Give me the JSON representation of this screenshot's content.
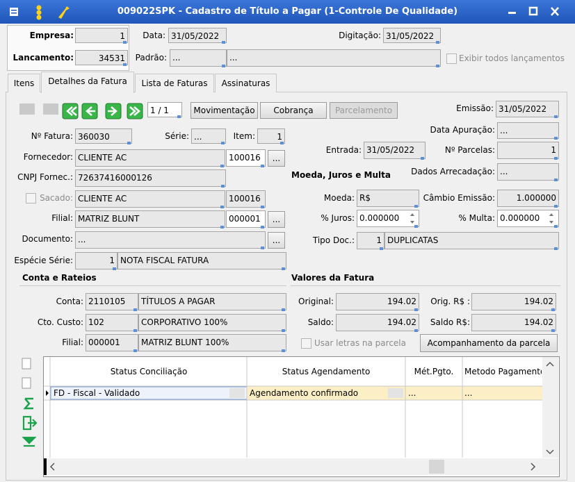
{
  "window": {
    "title": "009022SPK - Cadastro de Título a Pagar (1-Controle De Qualidade)"
  },
  "header": {
    "empresa_label": "Empresa:",
    "empresa": "1",
    "data_label": "Data:",
    "data": "31/05/2022",
    "digitacao_label": "Digitação:",
    "digitacao": "31/05/2022",
    "lancamento_label": "Lancamento:",
    "lancamento": "34531",
    "padrao_label": "Padrão:",
    "padrao_code": "...",
    "padrao_desc": "...",
    "exibir": "Exibir todos lançamentos"
  },
  "tabs": [
    "Itens",
    "Detalhes da Fatura",
    "Lista de Faturas",
    "Assinaturas"
  ],
  "toolbar": {
    "counter": "1 / 1",
    "movimentacao": "Movimentação",
    "cobranca": "Cobrança",
    "parcelamento": "Parcelamento",
    "browse": "..."
  },
  "fatura": {
    "numero_label": "Nº Fatura:",
    "numero": "360030",
    "serie_label": "Série:",
    "serie": "...",
    "item_label": "Item:",
    "item": "1",
    "fornecedor_label": "Fornecedor:",
    "fornecedor": "CLIENTE AC",
    "fornecedor_code": "100016",
    "cnpj_label": "CNPJ Fornec.:",
    "cnpj": "72637416000126",
    "sacado_label": "Sacado:",
    "sacado": "CLIENTE AC",
    "sacado_code": "100016",
    "filial_label": "Filial:",
    "filial": "MATRIZ BLUNT",
    "filial_code": "000001",
    "documento_label": "Documento:",
    "documento": "...",
    "especie_label": "Espécie Série:",
    "especie_code": "1",
    "especie": "NOTA FISCAL FATURA"
  },
  "datas": {
    "emissao_label": "Emissão:",
    "emissao": "31/05/2022",
    "apuracao_label": "Data Apuração:",
    "apuracao": "...",
    "entrada_label": "Entrada:",
    "entrada": "31/05/2022",
    "parcelas_label": "Nº Parcelas:",
    "parcelas": "1"
  },
  "moeda": {
    "heading": "Moeda, Juros e Multa",
    "arrecadacao_label": "Dados Arrecadação:",
    "arrecadacao": "...",
    "moeda_label": "Moeda:",
    "moeda": "R$",
    "cambio_label": "Câmbio Emissão:",
    "cambio": "1.000000",
    "juros_label": "% Juros:",
    "juros": "0.000000",
    "multa_label": "% Multa:",
    "multa": "0.000000",
    "tipo_label": "Tipo Doc.:",
    "tipo_code": "1",
    "tipo": "DUPLICATAS"
  },
  "conta": {
    "heading": "Conta e Rateios",
    "conta_label": "Conta:",
    "conta_code": "2110105",
    "conta": "TÍTULOS A PAGAR",
    "custo_label": "Cto. Custo:",
    "custo_code": "102",
    "custo": "CORPORATIVO 100%",
    "filial_label": "Filial:",
    "filial_code": "000001",
    "filial": "MATRIZ BLUNT 100%"
  },
  "valores": {
    "heading": "Valores da Fatura",
    "original_label": "Original:",
    "original": "194.02",
    "orig_rs_label": "Orig. R$ :",
    "orig_rs": "194.02",
    "saldo_label": "Saldo:",
    "saldo": "194.02",
    "saldo_rs_label": "Saldo R$:",
    "saldo_rs": "194.02",
    "usar_letras": "Usar letras na parcela",
    "acompanhamento": "Acompanhamento da parcela"
  },
  "grid": {
    "columns": [
      "Status Conciliação",
      "Status Agendamento",
      "Mét.Pgto.",
      "Metodo Pagamento"
    ],
    "rows": [
      [
        "FD - Fiscal - Validado",
        "Agendamento confirmado",
        "...",
        "..."
      ]
    ]
  }
}
